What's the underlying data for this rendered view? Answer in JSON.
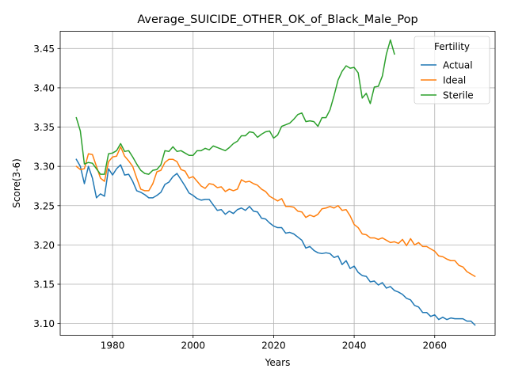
{
  "chart_data": {
    "type": "line",
    "title": "Average_SUICIDE_OTHER_OK_of_Black_Male_Pop",
    "xlabel": "Years",
    "ylabel": "Score(3-6)",
    "xlim": [
      1967,
      2075
    ],
    "ylim": [
      3.085,
      3.472
    ],
    "xticks": [
      1980,
      2000,
      2020,
      2040,
      2060
    ],
    "yticks": [
      3.1,
      3.15,
      3.2,
      3.25,
      3.3,
      3.35,
      3.4,
      3.45
    ],
    "ytick_labels": [
      "3.10",
      "3.15",
      "3.20",
      "3.25",
      "3.30",
      "3.35",
      "3.40",
      "3.45"
    ],
    "grid": true,
    "legend": {
      "title": "Fertility",
      "placement": "top-right"
    },
    "series": [
      {
        "name": "Actual",
        "color": "#1f77b4",
        "x": [
          1971,
          1972,
          1973,
          1974,
          1975,
          1976,
          1977,
          1978,
          1979,
          1980,
          1981,
          1982,
          1983,
          1984,
          1985,
          1986,
          1987,
          1988,
          1989,
          1990,
          1991,
          1992,
          1993,
          1994,
          1995,
          1996,
          1997,
          1998,
          1999,
          2000,
          2001,
          2002,
          2003,
          2004,
          2005,
          2006,
          2007,
          2008,
          2009,
          2010,
          2011,
          2012,
          2013,
          2014,
          2015,
          2016,
          2017,
          2018,
          2019,
          2020,
          2021,
          2022,
          2023,
          2024,
          2025,
          2026,
          2027,
          2028,
          2029,
          2030,
          2031,
          2032,
          2033,
          2034,
          2035,
          2036,
          2037,
          2038,
          2039,
          2040,
          2041,
          2042,
          2043,
          2044,
          2045,
          2046,
          2047,
          2048,
          2049,
          2050,
          2051,
          2052,
          2053,
          2054,
          2055,
          2056,
          2057,
          2058,
          2059,
          2060,
          2061,
          2062,
          2063,
          2064,
          2065,
          2066,
          2067,
          2068,
          2069,
          2070
        ],
        "values": [
          3.309,
          3.3,
          3.278,
          3.3,
          3.285,
          3.26,
          3.265,
          3.262,
          3.297,
          3.289,
          3.297,
          3.302,
          3.289,
          3.29,
          3.281,
          3.269,
          3.267,
          3.264,
          3.26,
          3.26,
          3.263,
          3.267,
          3.277,
          3.28,
          3.287,
          3.291,
          3.283,
          3.275,
          3.266,
          3.263,
          3.259,
          3.257,
          3.258,
          3.258,
          3.251,
          3.244,
          3.245,
          3.239,
          3.243,
          3.24,
          3.245,
          3.247,
          3.244,
          3.249,
          3.243,
          3.242,
          3.234,
          3.233,
          3.228,
          3.224,
          3.222,
          3.222,
          3.215,
          3.216,
          3.214,
          3.21,
          3.206,
          3.196,
          3.198,
          3.193,
          3.19,
          3.189,
          3.19,
          3.189,
          3.184,
          3.186,
          3.175,
          3.18,
          3.17,
          3.173,
          3.165,
          3.161,
          3.16,
          3.153,
          3.154,
          3.149,
          3.152,
          3.145,
          3.147,
          3.142,
          3.14,
          3.137,
          3.132,
          3.13,
          3.123,
          3.121,
          3.114,
          3.114,
          3.109,
          3.111,
          3.105,
          3.108,
          3.105,
          3.107,
          3.106,
          3.106,
          3.106,
          3.103,
          3.103,
          3.098
        ]
      },
      {
        "name": "Ideal",
        "color": "#ff7f0e",
        "x": [
          1971,
          1972,
          1973,
          1974,
          1975,
          1976,
          1977,
          1978,
          1979,
          1980,
          1981,
          1982,
          1983,
          1984,
          1985,
          1986,
          1987,
          1988,
          1989,
          1990,
          1991,
          1992,
          1993,
          1994,
          1995,
          1996,
          1997,
          1998,
          1999,
          2000,
          2001,
          2002,
          2003,
          2004,
          2005,
          2006,
          2007,
          2008,
          2009,
          2010,
          2011,
          2012,
          2013,
          2014,
          2015,
          2016,
          2017,
          2018,
          2019,
          2020,
          2021,
          2022,
          2023,
          2024,
          2025,
          2026,
          2027,
          2028,
          2029,
          2030,
          2031,
          2032,
          2033,
          2034,
          2035,
          2036,
          2037,
          2038,
          2039,
          2040,
          2041,
          2042,
          2043,
          2044,
          2045,
          2046,
          2047,
          2048,
          2049,
          2050,
          2051,
          2052,
          2053,
          2054,
          2055,
          2056,
          2057,
          2058,
          2059,
          2060,
          2061,
          2062,
          2063,
          2064,
          2065,
          2066,
          2067,
          2068,
          2069,
          2070
        ],
        "values": [
          3.3,
          3.296,
          3.297,
          3.316,
          3.315,
          3.3,
          3.285,
          3.281,
          3.306,
          3.312,
          3.313,
          3.325,
          3.313,
          3.307,
          3.3,
          3.285,
          3.271,
          3.269,
          3.269,
          3.278,
          3.293,
          3.295,
          3.305,
          3.309,
          3.309,
          3.306,
          3.296,
          3.294,
          3.285,
          3.287,
          3.281,
          3.275,
          3.272,
          3.278,
          3.277,
          3.273,
          3.274,
          3.268,
          3.271,
          3.269,
          3.271,
          3.283,
          3.28,
          3.281,
          3.278,
          3.276,
          3.271,
          3.268,
          3.262,
          3.259,
          3.256,
          3.259,
          3.249,
          3.249,
          3.248,
          3.243,
          3.242,
          3.235,
          3.238,
          3.236,
          3.239,
          3.246,
          3.247,
          3.249,
          3.247,
          3.25,
          3.244,
          3.245,
          3.237,
          3.226,
          3.222,
          3.214,
          3.213,
          3.209,
          3.209,
          3.207,
          3.209,
          3.206,
          3.203,
          3.204,
          3.202,
          3.207,
          3.199,
          3.208,
          3.2,
          3.203,
          3.198,
          3.198,
          3.195,
          3.192,
          3.186,
          3.185,
          3.182,
          3.18,
          3.18,
          3.174,
          3.172,
          3.166,
          3.163,
          3.16
        ]
      },
      {
        "name": "Sterile",
        "color": "#2ca02c",
        "x": [
          1971,
          1972,
          1973,
          1974,
          1975,
          1976,
          1977,
          1978,
          1979,
          1980,
          1981,
          1982,
          1983,
          1984,
          1985,
          1986,
          1987,
          1988,
          1989,
          1990,
          1991,
          1992,
          1993,
          1994,
          1995,
          1996,
          1997,
          1998,
          1999,
          2000,
          2001,
          2002,
          2003,
          2004,
          2005,
          2006,
          2007,
          2008,
          2009,
          2010,
          2011,
          2012,
          2013,
          2014,
          2015,
          2016,
          2017,
          2018,
          2019,
          2020,
          2021,
          2022,
          2023,
          2024,
          2025,
          2026,
          2027,
          2028,
          2029,
          2030,
          2031,
          2032,
          2033,
          2034,
          2035,
          2036,
          2037,
          2038,
          2039,
          2040,
          2041,
          2042,
          2043,
          2044,
          2045,
          2046,
          2047,
          2048,
          2049,
          2050
        ],
        "values": [
          3.362,
          3.345,
          3.303,
          3.305,
          3.304,
          3.297,
          3.29,
          3.29,
          3.316,
          3.317,
          3.32,
          3.329,
          3.319,
          3.32,
          3.312,
          3.303,
          3.295,
          3.291,
          3.29,
          3.295,
          3.296,
          3.302,
          3.32,
          3.319,
          3.325,
          3.319,
          3.32,
          3.317,
          3.314,
          3.314,
          3.32,
          3.32,
          3.323,
          3.321,
          3.326,
          3.324,
          3.322,
          3.32,
          3.324,
          3.329,
          3.332,
          3.339,
          3.339,
          3.344,
          3.343,
          3.337,
          3.341,
          3.344,
          3.345,
          3.336,
          3.34,
          3.351,
          3.353,
          3.355,
          3.36,
          3.366,
          3.368,
          3.357,
          3.358,
          3.357,
          3.351,
          3.362,
          3.362,
          3.372,
          3.39,
          3.41,
          3.421,
          3.428,
          3.425,
          3.426,
          3.419,
          3.387,
          3.393,
          3.38,
          3.401,
          3.402,
          3.415,
          3.443,
          3.461,
          3.443
        ]
      }
    ]
  }
}
